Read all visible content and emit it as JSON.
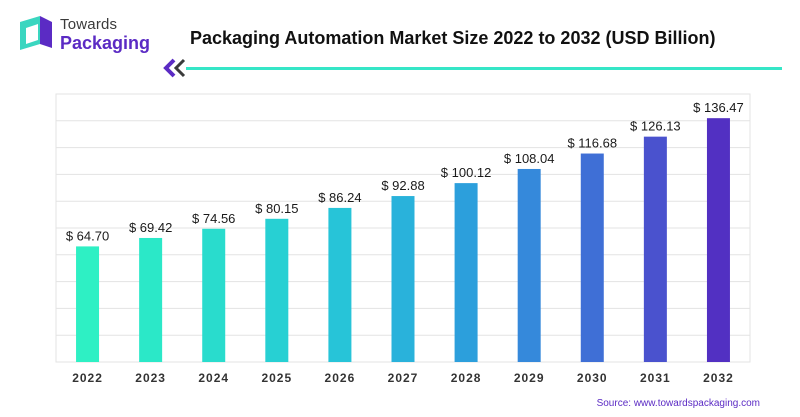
{
  "brand": {
    "line1": "Towards",
    "line2": "Packaging"
  },
  "source": "Source: www.towardspackaging.com",
  "colors": {
    "brand_purple": "#5b2bc4",
    "accent_teal": "#35e6c7",
    "grid": "#e3e3e3"
  },
  "chart_data": {
    "type": "bar",
    "title": "Packaging Automation Market Size 2022 to 2032 (USD Billion)",
    "categories": [
      "2022",
      "2023",
      "2024",
      "2025",
      "2026",
      "2027",
      "2028",
      "2029",
      "2030",
      "2031",
      "2032"
    ],
    "values": [
      64.7,
      69.42,
      74.56,
      80.15,
      86.24,
      92.88,
      100.12,
      108.04,
      116.68,
      126.13,
      136.47
    ],
    "data_labels": [
      "$ 64.70",
      "$ 69.42",
      "$ 74.56",
      "$ 80.15",
      "$ 86.24",
      "$ 92.88",
      "$ 100.12",
      "$ 108.04",
      "$ 116.68",
      "$ 126.13",
      "$ 136.47"
    ],
    "bar_colors": [
      "#2ef0c4",
      "#2be8c8",
      "#29dccd",
      "#27d0d3",
      "#27c4d8",
      "#29b2db",
      "#2c9fdc",
      "#3589db",
      "#3f6fd6",
      "#4a52ce",
      "#5230c2"
    ],
    "xlabel": "",
    "ylabel": "",
    "ylim": [
      0,
      150
    ],
    "grid": true,
    "legend": "none"
  }
}
